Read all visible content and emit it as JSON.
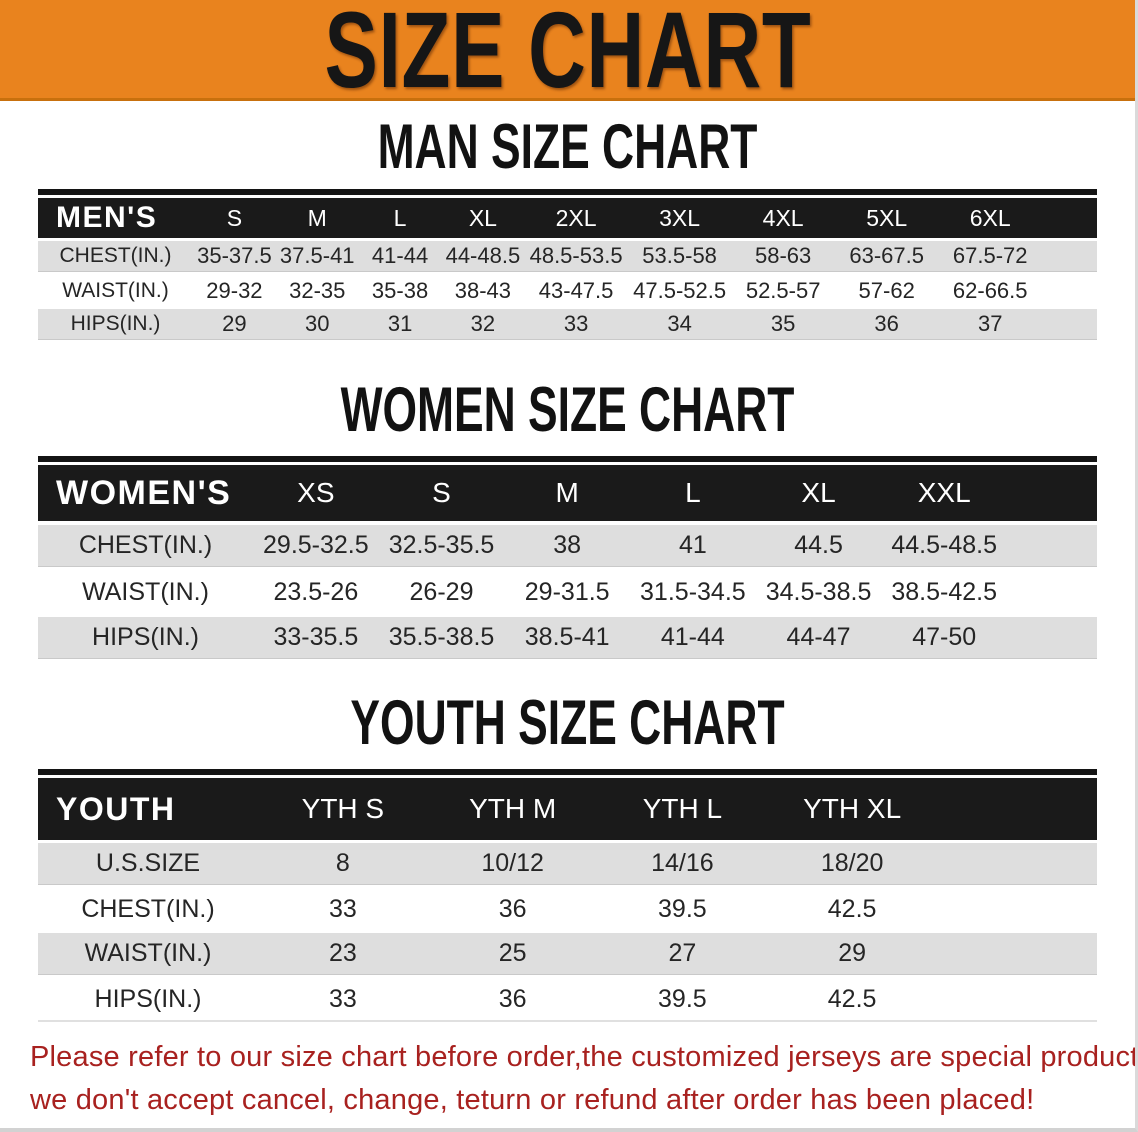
{
  "banner": {
    "title": "SIZE CHART",
    "bg_color": "#E9831E",
    "text_color": "#161616"
  },
  "chart_data": [
    {
      "type": "table",
      "title": "MAN SIZE CHART",
      "corner_label": "MEN'S",
      "columns": [
        "S",
        "M",
        "L",
        "XL",
        "2XL",
        "3XL",
        "4XL",
        "5XL",
        "6XL"
      ],
      "rows": [
        {
          "label": "CHEST(IN.)",
          "values": [
            "35-37.5",
            "37.5-41",
            "41-44",
            "44-48.5",
            "48.5-53.5",
            "53.5-58",
            "58-63",
            "63-67.5",
            "67.5-72"
          ]
        },
        {
          "label": "WAIST(IN.)",
          "values": [
            "29-32",
            "32-35",
            "35-38",
            "38-43",
            "43-47.5",
            "47.5-52.5",
            "52.5-57",
            "57-62",
            "62-66.5"
          ]
        },
        {
          "label": "HIPS(IN.)",
          "values": [
            "29",
            "30",
            "31",
            "32",
            "33",
            "34",
            "35",
            "36",
            "37"
          ]
        }
      ]
    },
    {
      "type": "table",
      "title": "WOMEN SIZE CHART",
      "corner_label": "WOMEN'S",
      "columns": [
        "XS",
        "S",
        "M",
        "L",
        "XL",
        "XXL"
      ],
      "rows": [
        {
          "label": "CHEST(IN.)",
          "values": [
            "29.5-32.5",
            "32.5-35.5",
            "38",
            "41",
            "44.5",
            "44.5-48.5"
          ]
        },
        {
          "label": "WAIST(IN.)",
          "values": [
            "23.5-26",
            "26-29",
            "29-31.5",
            "31.5-34.5",
            "34.5-38.5",
            "38.5-42.5"
          ]
        },
        {
          "label": "HIPS(IN.)",
          "values": [
            "33-35.5",
            "35.5-38.5",
            "38.5-41",
            "41-44",
            "44-47",
            "47-50"
          ]
        }
      ]
    },
    {
      "type": "table",
      "title": "YOUTH SIZE CHART",
      "corner_label": "YOUTH",
      "columns": [
        "YTH S",
        "YTH M",
        "YTH L",
        "YTH XL"
      ],
      "rows": [
        {
          "label": "U.S.SIZE",
          "values": [
            "8",
            "10/12",
            "14/16",
            "18/20"
          ]
        },
        {
          "label": "CHEST(IN.)",
          "values": [
            "33",
            "36",
            "39.5",
            "42.5"
          ]
        },
        {
          "label": "WAIST(IN.)",
          "values": [
            "23",
            "25",
            "27",
            "29"
          ]
        },
        {
          "label": "HIPS(IN.)",
          "values": [
            "33",
            "36",
            "39.5",
            "42.5"
          ]
        }
      ]
    }
  ],
  "disclaimer": {
    "line1": "Please refer to our size chart before order,the customized jerseys are special products,",
    "line2": "we don't accept cancel, change, teturn or refund after order has been placed!",
    "text_color": "#A8211F"
  },
  "colors": {
    "banner_orange": "#E9831E",
    "header_bar_black": "#1A1A1A",
    "shaded_row_gray": "#DEDEDE"
  }
}
